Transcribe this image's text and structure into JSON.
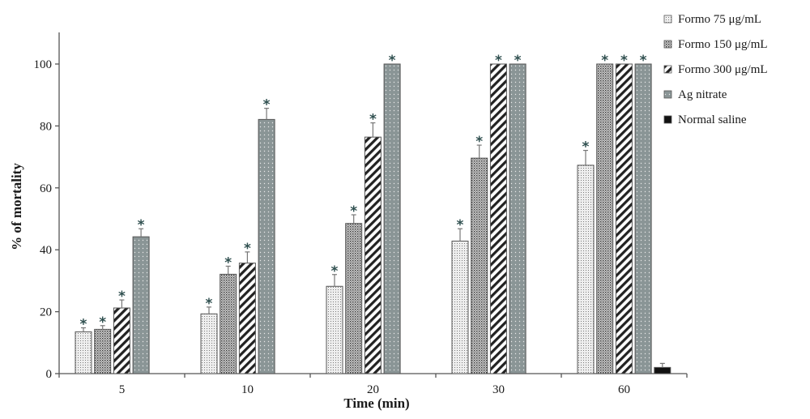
{
  "chart_data": {
    "type": "bar",
    "title": "",
    "xlabel": "Time (min)",
    "ylabel": "% of mortality",
    "ylim": [
      0,
      100
    ],
    "yticks": [
      0,
      20,
      40,
      60,
      80,
      100
    ],
    "categories": [
      "5",
      "10",
      "20",
      "30",
      "60"
    ],
    "series": [
      {
        "name": "Formo 75 μg/mL",
        "values": [
          13.5,
          19.3,
          28.2,
          42.8,
          67.3
        ],
        "errors": [
          1.3,
          2.2,
          3.8,
          4.0,
          4.8
        ],
        "significant": [
          true,
          true,
          true,
          true,
          true
        ],
        "fill": "dots-light"
      },
      {
        "name": "Formo 150 μg/mL",
        "values": [
          14.3,
          32.1,
          48.5,
          69.6,
          100
        ],
        "errors": [
          1.2,
          2.6,
          2.8,
          4.2,
          0
        ],
        "significant": [
          true,
          true,
          true,
          true,
          true
        ],
        "fill": "dots-dense"
      },
      {
        "name": "Formo 300 μg/mL",
        "values": [
          21.2,
          35.7,
          76.4,
          100,
          100
        ],
        "errors": [
          2.6,
          3.6,
          4.6,
          0,
          0
        ],
        "significant": [
          true,
          true,
          true,
          true,
          true
        ],
        "fill": "diagonal"
      },
      {
        "name": "Ag nitrate",
        "values": [
          44.2,
          82.1,
          100,
          100,
          100
        ],
        "errors": [
          2.6,
          3.6,
          0,
          0,
          0
        ],
        "significant": [
          true,
          true,
          true,
          true,
          true
        ],
        "fill": "dark-dots"
      },
      {
        "name": "Normal saline",
        "values": [
          null,
          null,
          null,
          null,
          2.0
        ],
        "errors": [
          null,
          null,
          null,
          null,
          1.3
        ],
        "significant": [
          false,
          false,
          false,
          false,
          false
        ],
        "fill": "black"
      }
    ],
    "significance_marker": "*",
    "grid": false,
    "legend_position": "top-right"
  }
}
